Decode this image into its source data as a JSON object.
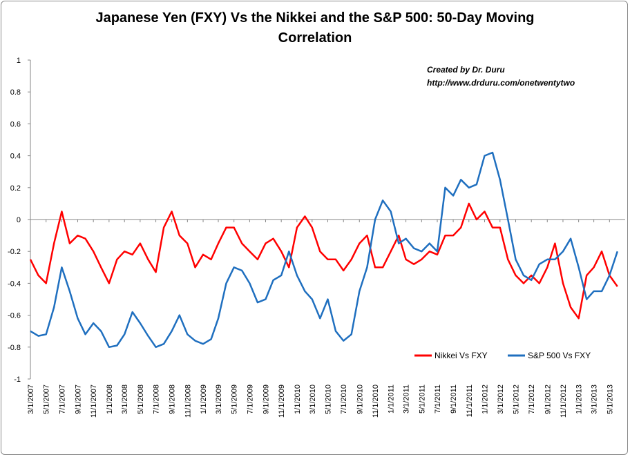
{
  "chart_data": {
    "type": "line",
    "title": "Japanese Yen (FXY) Vs the Nikkei and the S&P 500: 50-Day Moving Correlation",
    "annotations": [
      "Created by Dr. Duru",
      "http://www.drduru.com/onetwentytwo"
    ],
    "x": [
      "3/1/2007",
      "4/1/2007",
      "5/1/2007",
      "6/1/2007",
      "7/1/2007",
      "8/1/2007",
      "9/1/2007",
      "10/1/2007",
      "11/1/2007",
      "12/1/2007",
      "1/1/2008",
      "2/1/2008",
      "3/1/2008",
      "4/1/2008",
      "5/1/2008",
      "6/1/2008",
      "7/1/2008",
      "8/1/2008",
      "9/1/2008",
      "10/1/2008",
      "11/1/2008",
      "12/1/2008",
      "1/1/2009",
      "2/1/2009",
      "3/1/2009",
      "4/1/2009",
      "5/1/2009",
      "6/1/2009",
      "7/1/2009",
      "8/1/2009",
      "9/1/2009",
      "10/1/2009",
      "11/1/2009",
      "12/1/2009",
      "1/1/2010",
      "2/1/2010",
      "3/1/2010",
      "4/1/2010",
      "5/1/2010",
      "6/1/2010",
      "7/1/2010",
      "8/1/2010",
      "9/1/2010",
      "10/1/2010",
      "11/1/2010",
      "12/1/2010",
      "1/1/2011",
      "2/1/2011",
      "3/1/2011",
      "4/1/2011",
      "5/1/2011",
      "6/1/2011",
      "7/1/2011",
      "8/1/2011",
      "9/1/2011",
      "10/1/2011",
      "11/1/2011",
      "12/1/2011",
      "1/1/2012",
      "2/1/2012",
      "3/1/2012",
      "4/1/2012",
      "5/1/2012",
      "6/1/2012",
      "7/1/2012",
      "8/1/2012",
      "9/1/2012",
      "10/1/2012",
      "11/1/2012",
      "12/1/2012",
      "1/1/2013",
      "2/1/2013",
      "3/1/2013",
      "4/1/2013",
      "5/1/2013",
      "6/1/2013"
    ],
    "series": [
      {
        "name": "Nikkei Vs FXY",
        "color": "#ff0000",
        "values": [
          -0.25,
          -0.35,
          -0.4,
          -0.15,
          0.05,
          -0.15,
          -0.1,
          -0.12,
          -0.2,
          -0.3,
          -0.4,
          -0.25,
          -0.2,
          -0.22,
          -0.15,
          -0.25,
          -0.33,
          -0.05,
          0.05,
          -0.1,
          -0.15,
          -0.3,
          -0.22,
          -0.25,
          -0.15,
          -0.05,
          -0.05,
          -0.15,
          -0.2,
          -0.25,
          -0.15,
          -0.12,
          -0.2,
          -0.3,
          -0.05,
          0.02,
          -0.05,
          -0.2,
          -0.25,
          -0.25,
          -0.32,
          -0.25,
          -0.15,
          -0.1,
          -0.3,
          -0.3,
          -0.2,
          -0.1,
          -0.25,
          -0.28,
          -0.25,
          -0.2,
          -0.22,
          -0.1,
          -0.1,
          -0.05,
          0.1,
          0.0,
          0.05,
          -0.05,
          -0.05,
          -0.25,
          -0.35,
          -0.4,
          -0.35,
          -0.4,
          -0.3,
          -0.15,
          -0.4,
          -0.55,
          -0.62,
          -0.35,
          -0.3,
          -0.2,
          -0.35,
          -0.42
        ]
      },
      {
        "name": "S&P 500 Vs FXY",
        "color": "#1f6fbf",
        "values": [
          -0.7,
          -0.73,
          -0.72,
          -0.55,
          -0.3,
          -0.45,
          -0.62,
          -0.72,
          -0.65,
          -0.7,
          -0.8,
          -0.79,
          -0.72,
          -0.58,
          -0.65,
          -0.73,
          -0.8,
          -0.78,
          -0.7,
          -0.6,
          -0.72,
          -0.76,
          -0.78,
          -0.75,
          -0.62,
          -0.4,
          -0.3,
          -0.32,
          -0.4,
          -0.52,
          -0.5,
          -0.38,
          -0.35,
          -0.2,
          -0.35,
          -0.45,
          -0.5,
          -0.62,
          -0.5,
          -0.7,
          -0.76,
          -0.72,
          -0.45,
          -0.3,
          0.0,
          0.12,
          0.05,
          -0.15,
          -0.12,
          -0.18,
          -0.2,
          -0.15,
          -0.2,
          0.2,
          0.15,
          0.25,
          0.2,
          0.22,
          0.4,
          0.42,
          0.25,
          0.0,
          -0.25,
          -0.35,
          -0.38,
          -0.28,
          -0.25,
          -0.25,
          -0.2,
          -0.12,
          -0.3,
          -0.5,
          -0.45,
          -0.45,
          -0.35,
          -0.2
        ]
      }
    ],
    "xlim": [
      "3/1/2007",
      "7/1/2013"
    ],
    "xticks": [
      "3/1/2007",
      "5/1/2007",
      "7/1/2007",
      "9/1/2007",
      "11/1/2007",
      "1/1/2008",
      "3/1/2008",
      "5/1/2008",
      "7/1/2008",
      "9/1/2008",
      "11/1/2008",
      "1/1/2009",
      "3/1/2009",
      "5/1/2009",
      "7/1/2009",
      "9/1/2009",
      "11/1/2009",
      "1/1/2010",
      "3/1/2010",
      "5/1/2010",
      "7/1/2010",
      "9/1/2010",
      "11/1/2010",
      "1/1/2011",
      "3/1/2011",
      "5/1/2011",
      "7/1/2011",
      "9/1/2011",
      "11/1/2011",
      "1/1/2012",
      "3/1/2012",
      "5/1/2012",
      "7/1/2012",
      "9/1/2012",
      "11/1/2012",
      "1/1/2013",
      "3/1/2013",
      "5/1/2013"
    ],
    "ylim": [
      -1,
      1
    ],
    "yticks": [
      -1,
      -0.8,
      -0.6,
      -0.4,
      -0.2,
      0,
      0.2,
      0.4,
      0.6,
      0.8,
      1
    ],
    "grid": false,
    "legend": "bottom-right"
  }
}
